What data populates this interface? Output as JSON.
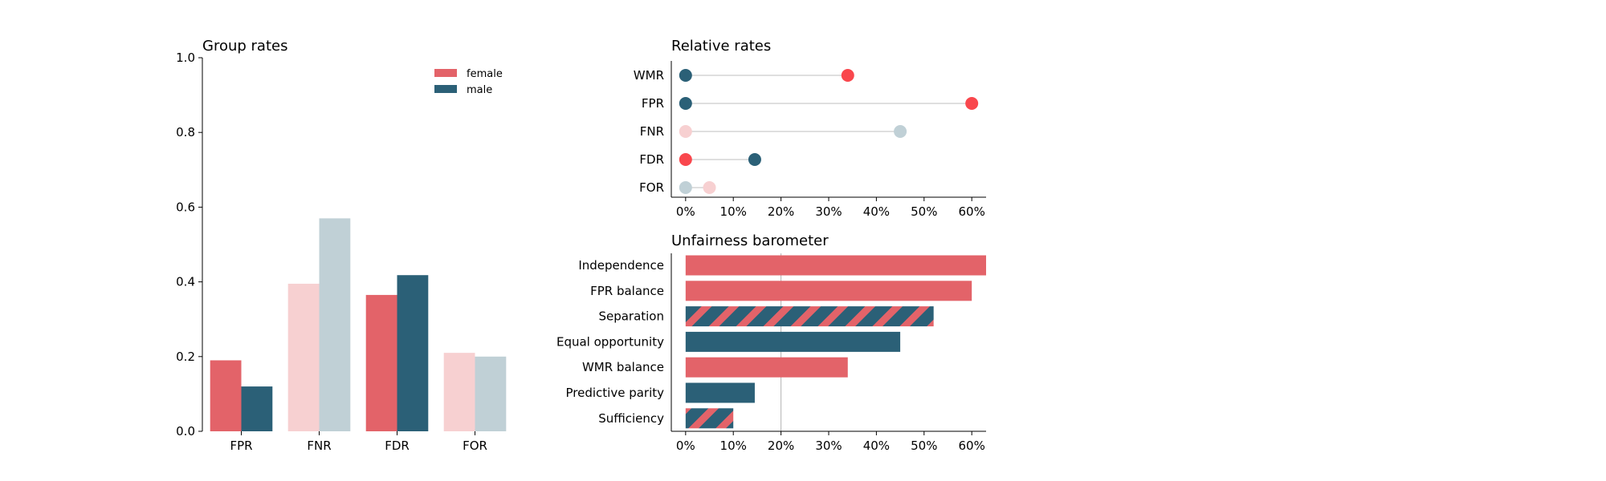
{
  "colors": {
    "female": "#e36369",
    "male": "#2b6077",
    "female_light": "#f7d0d1",
    "male_light": "#c0d0d6",
    "dot_female": "#f9474d",
    "line": "#cccccc",
    "axis": "#000000"
  },
  "chart_data": [
    {
      "id": "group_rates",
      "type": "bar",
      "title": "Group rates",
      "categories": [
        "FPR",
        "FNR",
        "FDR",
        "FOR"
      ],
      "series": [
        {
          "name": "female",
          "values": [
            0.19,
            0.395,
            0.365,
            0.21
          ]
        },
        {
          "name": "male",
          "values": [
            0.12,
            0.57,
            0.418,
            0.2
          ]
        }
      ],
      "faded": [
        false,
        true,
        false,
        true
      ],
      "ylim": [
        0,
        1.0
      ],
      "yticks": [
        0.0,
        0.2,
        0.4,
        0.6,
        0.8,
        1.0
      ],
      "ytick_labels": [
        "0.0",
        "0.2",
        "0.4",
        "0.6",
        "0.8",
        "1.0"
      ],
      "legend": [
        "female",
        "male"
      ],
      "legend_position": "top-right"
    },
    {
      "id": "relative_rates",
      "type": "scatter",
      "title": "Relative rates",
      "categories": [
        "WMR",
        "FPR",
        "FNR",
        "FDR",
        "FOR"
      ],
      "points": [
        {
          "label": "WMR",
          "base": "male",
          "base_value": 0,
          "other": "female",
          "value": 34,
          "faded": false
        },
        {
          "label": "FPR",
          "base": "male",
          "base_value": 0,
          "other": "female",
          "value": 60,
          "faded": false
        },
        {
          "label": "FNR",
          "base": "female",
          "base_value": 0,
          "other": "male",
          "value": 45,
          "faded": true
        },
        {
          "label": "FDR",
          "base": "female",
          "base_value": 0,
          "other": "male",
          "value": 14.5,
          "faded": false
        },
        {
          "label": "FOR",
          "base": "male",
          "base_value": 0,
          "other": "female",
          "value": 5,
          "faded": true
        }
      ],
      "xlim": [
        -3,
        63
      ],
      "xticks": [
        0,
        10,
        20,
        30,
        40,
        50,
        60
      ],
      "xtick_labels": [
        "0%",
        "10%",
        "20%",
        "30%",
        "40%",
        "50%",
        "60%"
      ]
    },
    {
      "id": "unfairness_barometer",
      "type": "bar",
      "orientation": "horizontal",
      "title": "Unfairness barometer",
      "categories": [
        "Independence",
        "FPR balance",
        "Separation",
        "Equal opportunity",
        "WMR balance",
        "Predictive parity",
        "Sufficiency"
      ],
      "values": [
        63,
        60,
        52,
        45,
        34,
        14.5,
        10
      ],
      "styles": [
        "female",
        "female",
        "striped",
        "male",
        "female",
        "male",
        "striped"
      ],
      "reference_line": 20,
      "xlim": [
        -3,
        63
      ],
      "xticks": [
        0,
        10,
        20,
        30,
        40,
        50,
        60
      ],
      "xtick_labels": [
        "0%",
        "10%",
        "20%",
        "30%",
        "40%",
        "50%",
        "60%"
      ]
    }
  ]
}
